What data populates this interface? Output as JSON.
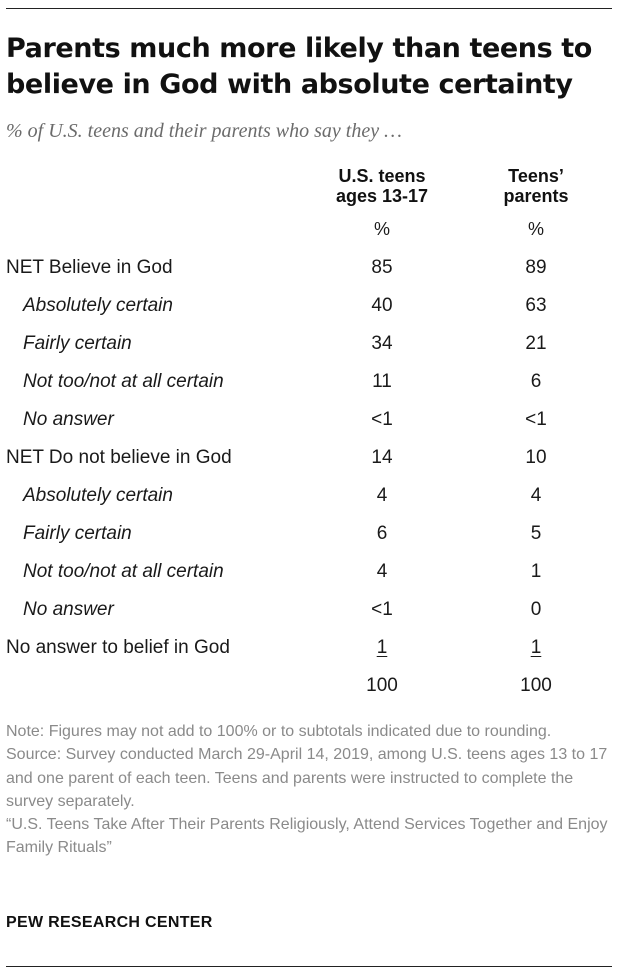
{
  "title": "Parents much more likely than teens to believe in God with absolute certainty",
  "subtitle": "% of U.S. teens and their parents who say they …",
  "columns": {
    "teens": {
      "line1": "U.S. teens",
      "line2": "ages 13-17",
      "unit": "%"
    },
    "parents": {
      "line1": "Teens’",
      "line2": "parents",
      "unit": "%"
    }
  },
  "rows": [
    {
      "label": "NET Believe in God",
      "indent": false,
      "teens": "85",
      "parents": "89"
    },
    {
      "label": "Absolutely certain",
      "indent": true,
      "teens": "40",
      "parents": "63"
    },
    {
      "label": "Fairly certain",
      "indent": true,
      "teens": "34",
      "parents": "21"
    },
    {
      "label": "Not too/not at all certain",
      "indent": true,
      "teens": "11",
      "parents": "6"
    },
    {
      "label": "No answer",
      "indent": true,
      "teens": "<1",
      "parents": "<1"
    },
    {
      "label": "NET Do not believe in God",
      "indent": false,
      "teens": "14",
      "parents": "10"
    },
    {
      "label": "Absolutely certain",
      "indent": true,
      "teens": "4",
      "parents": "4"
    },
    {
      "label": "Fairly certain",
      "indent": true,
      "teens": "6",
      "parents": "5"
    },
    {
      "label": "Not too/not at all certain",
      "indent": true,
      "teens": "4",
      "parents": "1"
    },
    {
      "label": "No answer",
      "indent": true,
      "teens": "<1",
      "parents": "0"
    },
    {
      "label": "No answer to belief in God",
      "indent": false,
      "teens": "1",
      "parents": "1",
      "underline": true
    },
    {
      "label": "",
      "indent": false,
      "teens": "100",
      "parents": "100"
    }
  ],
  "note": "Note: Figures may not add to 100% or to subtotals indicated due to rounding.",
  "source": "Source: Survey conducted March 29-April 14, 2019, among U.S. teens ages 13 to 17 and one parent of each teen. Teens and parents were instructed to complete the survey separately.",
  "report": "“U.S. Teens Take After Their Parents Religiously, Attend Services Together and Enjoy Family Rituals”",
  "brand": "PEW RESEARCH CENTER"
}
